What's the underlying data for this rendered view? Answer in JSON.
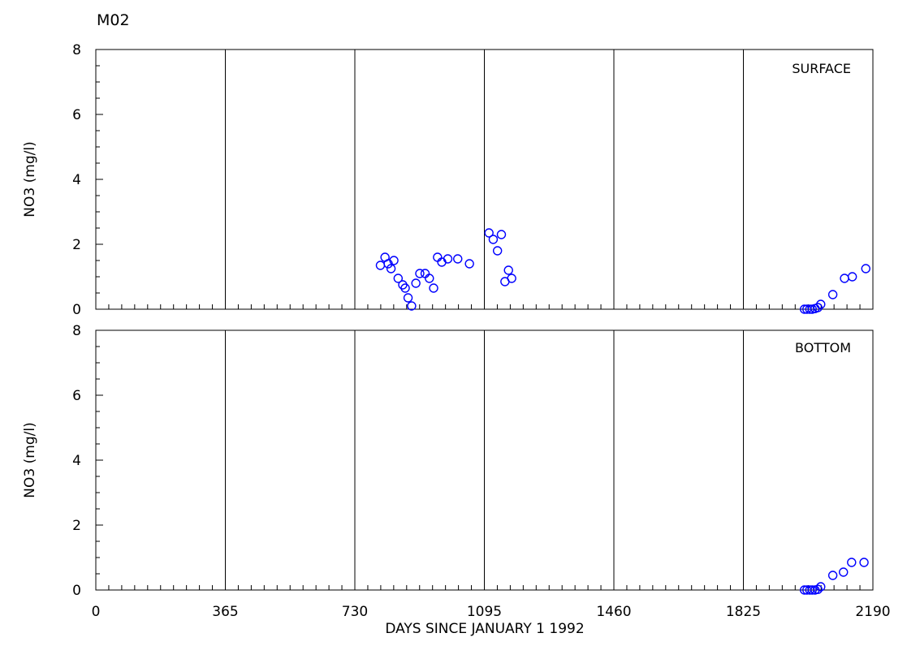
{
  "chart_data": {
    "type": "scatter",
    "title": "M02",
    "xlabel": "DAYS SINCE JANUARY 1 1992",
    "xlim": [
      0,
      2190
    ],
    "x_ticks": [
      0,
      365,
      730,
      1095,
      1460,
      1825,
      2190
    ],
    "x_tick_labels": [
      "0",
      "365",
      "730",
      "1095",
      "1460",
      "1825",
      "2190"
    ],
    "vertical_gridlines_at": [
      365,
      730,
      1095,
      1460,
      1825
    ],
    "marker": "open-circle",
    "marker_color": "#0000ff",
    "panels": [
      {
        "label": "SURFACE",
        "ylabel": "NO3 (mg/l)",
        "ylim": [
          0,
          8
        ],
        "y_ticks": [
          0,
          2,
          4,
          6,
          8
        ],
        "y_tick_labels": [
          "0",
          "2",
          "4",
          "6",
          "8"
        ],
        "points": [
          [
            802,
            1.35
          ],
          [
            815,
            1.6
          ],
          [
            824,
            1.4
          ],
          [
            832,
            1.25
          ],
          [
            840,
            1.5
          ],
          [
            852,
            0.95
          ],
          [
            865,
            0.75
          ],
          [
            872,
            0.65
          ],
          [
            880,
            0.35
          ],
          [
            890,
            0.1
          ],
          [
            902,
            0.8
          ],
          [
            913,
            1.1
          ],
          [
            928,
            1.1
          ],
          [
            940,
            0.95
          ],
          [
            952,
            0.65
          ],
          [
            963,
            1.6
          ],
          [
            975,
            1.45
          ],
          [
            992,
            1.55
          ],
          [
            1020,
            1.55
          ],
          [
            1053,
            1.4
          ],
          [
            1108,
            2.35
          ],
          [
            1120,
            2.15
          ],
          [
            1132,
            1.8
          ],
          [
            1143,
            2.3
          ],
          [
            1153,
            0.85
          ],
          [
            1163,
            1.2
          ],
          [
            1172,
            0.95
          ],
          [
            1997,
            0.0
          ],
          [
            2004,
            0.0
          ],
          [
            2012,
            0.0
          ],
          [
            2019,
            0.0
          ],
          [
            2027,
            0.02
          ],
          [
            2035,
            0.05
          ],
          [
            2043,
            0.15
          ],
          [
            2077,
            0.45
          ],
          [
            2110,
            0.95
          ],
          [
            2132,
            1.0
          ],
          [
            2170,
            1.25
          ]
        ]
      },
      {
        "label": "BOTTOM",
        "ylabel": "NO3 (mg/l)",
        "ylim": [
          0,
          8
        ],
        "y_ticks": [
          0,
          2,
          4,
          6,
          8
        ],
        "y_tick_labels": [
          "0",
          "2",
          "4",
          "6",
          "8"
        ],
        "points": [
          [
            1997,
            0.0
          ],
          [
            2004,
            0.0
          ],
          [
            2012,
            0.0
          ],
          [
            2019,
            0.0
          ],
          [
            2027,
            0.0
          ],
          [
            2035,
            0.02
          ],
          [
            2043,
            0.1
          ],
          [
            2077,
            0.45
          ],
          [
            2107,
            0.55
          ],
          [
            2130,
            0.85
          ],
          [
            2165,
            0.85
          ]
        ]
      }
    ]
  }
}
